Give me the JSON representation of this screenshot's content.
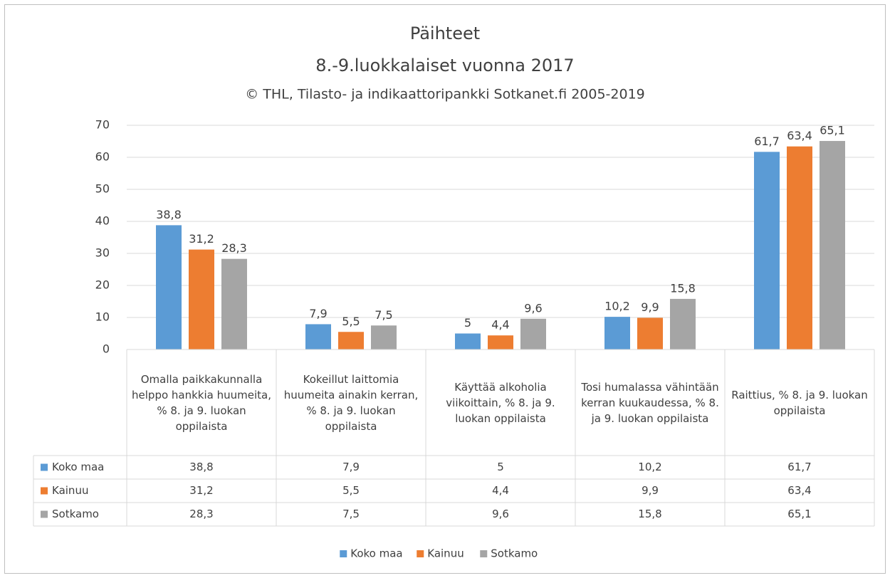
{
  "chart_data": {
    "type": "bar",
    "title": "Päihteet",
    "subtitle": "8.-9.luokkalaiset vuonna 2017",
    "source": "© THL, Tilasto- ja indikaattoripankki Sotkanet.fi 2005-2019",
    "categories": [
      "Omalla paikkakunnalla helppo hankkia huumeita, % 8. ja 9. luokan oppilaista",
      "Kokeillut laittomia huumeita ainakin kerran, % 8. ja 9. luokan oppilaista",
      "Käyttää alkoholia viikoittain, % 8. ja 9. luokan oppilaista",
      "Tosi humalassa vähintään kerran kuukaudessa, % 8. ja 9. luokan oppilaista",
      "Raittius, % 8. ja 9. luokan oppilaista"
    ],
    "series": [
      {
        "name": "Koko maa",
        "color": "#5b9bd5",
        "values": [
          38.8,
          7.9,
          5,
          10.2,
          61.7
        ],
        "value_labels": [
          "38,8",
          "7,9",
          "5",
          "10,2",
          "61,7"
        ]
      },
      {
        "name": "Kainuu",
        "color": "#ed7d31",
        "values": [
          31.2,
          5.5,
          4.4,
          9.9,
          63.4
        ],
        "value_labels": [
          "31,2",
          "5,5",
          "4,4",
          "9,9",
          "63,4"
        ]
      },
      {
        "name": "Sotkamo",
        "color": "#a5a5a5",
        "values": [
          28.3,
          7.5,
          9.6,
          15.8,
          65.1
        ],
        "value_labels": [
          "28,3",
          "7,5",
          "9,6",
          "15,8",
          "65,1"
        ]
      }
    ],
    "ylim": [
      0,
      70
    ],
    "yticks": [
      0,
      10,
      20,
      30,
      40,
      50,
      60,
      70
    ],
    "grid": true,
    "data_table": true,
    "legend": "bottom"
  }
}
